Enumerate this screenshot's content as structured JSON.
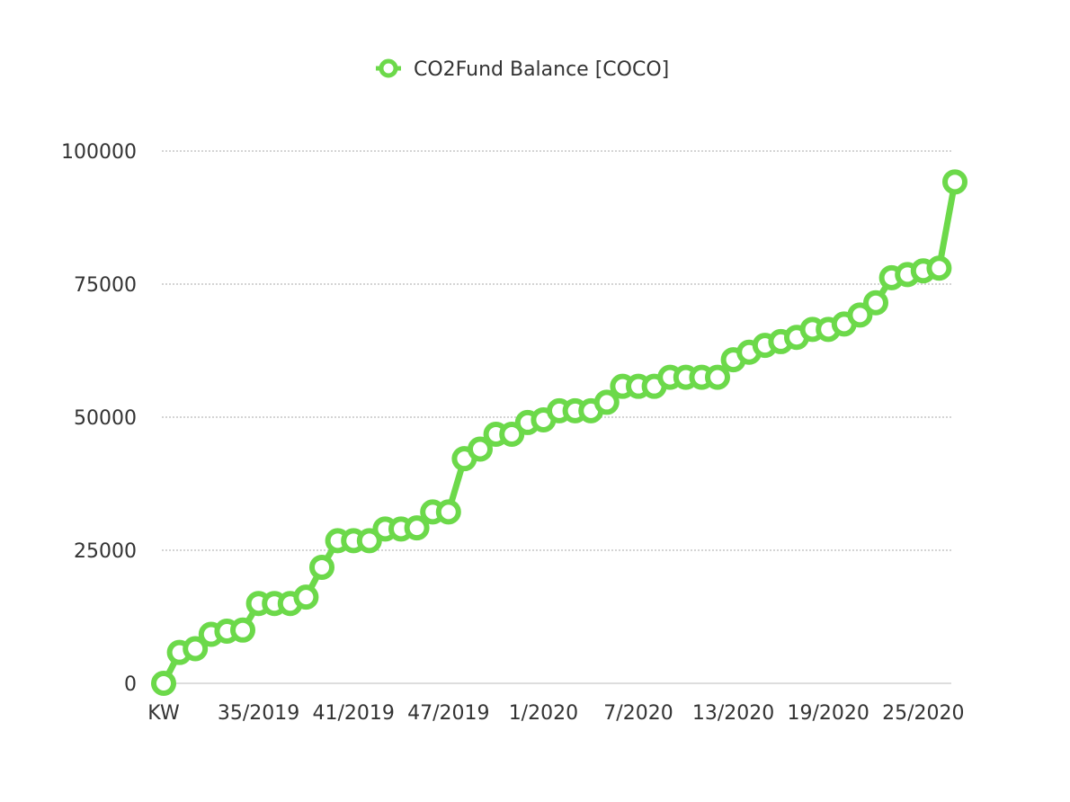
{
  "chart_data": {
    "type": "line",
    "legend": {
      "position": "top-center",
      "label": "CO2Fund Balance [COCO]"
    },
    "color": "#6cd94a",
    "grid": {
      "horizontal": true,
      "style": "dotted",
      "color": "#aaaaaa"
    },
    "ylim": [
      0,
      100000
    ],
    "y_ticks": [
      "0",
      "25000",
      "50000",
      "75000",
      "100000"
    ],
    "x_tick_labels": [
      "KW",
      "35/2019",
      "41/2019",
      "47/2019",
      "1/2020",
      "7/2020",
      "13/2020",
      "19/2020",
      "25/2020"
    ],
    "x_tick_indices": [
      0,
      6,
      12,
      18,
      24,
      30,
      36,
      42,
      48
    ],
    "series": [
      {
        "name": "CO2Fund Balance [COCO]",
        "values": [
          0,
          5800,
          6500,
          9200,
          9800,
          10000,
          15000,
          15000,
          15000,
          16200,
          21800,
          26800,
          26800,
          26800,
          29000,
          29000,
          29200,
          32200,
          32200,
          42200,
          44000,
          46800,
          46800,
          49000,
          49500,
          51200,
          51200,
          51200,
          52800,
          55800,
          55800,
          55800,
          57500,
          57500,
          57500,
          57500,
          60800,
          62200,
          63500,
          64200,
          65000,
          66500,
          66500,
          67500,
          69200,
          71500,
          76200,
          76800,
          77500,
          78000,
          94200
        ]
      }
    ]
  }
}
